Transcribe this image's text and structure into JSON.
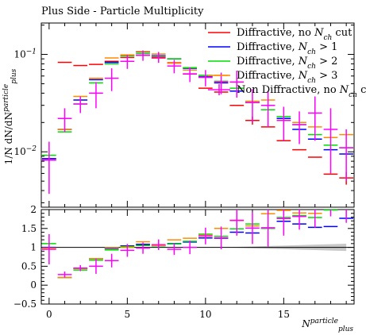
{
  "chart_data": {
    "type": "scatter",
    "title": "Plus Side - Particle Multiplicity",
    "xlabel": "N_plus^particle",
    "ylabel": "1/N dN/dN_plus^particle",
    "ratio_ylabel": "",
    "xlim": [
      -0.5,
      19.5
    ],
    "ylim_log": [
      0.0027,
      0.21
    ],
    "ratio_ylim": [
      -0.5,
      2.0
    ],
    "main_yticks": [
      {
        "value": 0.01,
        "base": "10",
        "exp": "−2"
      },
      {
        "value": 0.1,
        "base": "10",
        "exp": "−1"
      }
    ],
    "xticks": [
      0,
      5,
      10,
      15
    ],
    "ratio_yticks": [
      -0.5,
      0,
      0.5,
      1,
      1.5,
      2
    ],
    "series": [
      {
        "name": "Diffractive, no N_ch cut",
        "color": "#ff0000",
        "x": [
          0,
          1,
          2,
          3,
          4,
          5,
          6,
          7,
          8,
          9,
          10,
          11,
          12,
          13,
          14,
          15,
          16,
          17,
          18,
          19
        ],
        "y": [
          0.0085,
          0.083,
          0.077,
          0.079,
          0.085,
          0.093,
          0.098,
          0.092,
          0.082,
          0.063,
          0.045,
          0.041,
          0.03,
          0.021,
          0.018,
          0.013,
          0.0105,
          0.0088,
          0.0059,
          0.0054
        ],
        "yerr": [
          0,
          0,
          0,
          0,
          0,
          0,
          0,
          0,
          0,
          0,
          0,
          0,
          0,
          0.002,
          0,
          0,
          0,
          0,
          0,
          0.0008
        ],
        "ratio": [
          1,
          1,
          1,
          1,
          1,
          1,
          1,
          1,
          1,
          1,
          1,
          1,
          1,
          1,
          1,
          1,
          1,
          1,
          1,
          1
        ],
        "ratio_err": [
          0,
          0,
          0,
          0,
          0,
          0,
          0,
          0,
          0,
          0,
          0,
          0,
          0,
          0,
          0,
          0,
          0,
          0,
          0,
          0
        ]
      },
      {
        "name": "Diffractive, N_ch > 1",
        "color": "#0000ff",
        "x": [
          0,
          1,
          2,
          3,
          4,
          5,
          6,
          7,
          8,
          9,
          10,
          11,
          12,
          13,
          14,
          15,
          16,
          17,
          18,
          19
        ],
        "y": [
          0.0085,
          0.017,
          0.034,
          0.055,
          0.083,
          0.097,
          0.106,
          0.097,
          0.09,
          0.072,
          0.059,
          0.051,
          0.042,
          0.032,
          0.027,
          0.022,
          0.017,
          0.0135,
          0.0105,
          0.0095
        ],
        "yerr": [
          0,
          0,
          0,
          0,
          0,
          0,
          0,
          0,
          0,
          0,
          0,
          0,
          0,
          0,
          0,
          0,
          0,
          0,
          0,
          0
        ],
        "ratio": [
          1.0,
          0.2,
          0.44,
          0.7,
          0.97,
          1.04,
          1.08,
          1.05,
          1.1,
          1.14,
          1.25,
          1.24,
          1.4,
          1.38,
          1.5,
          1.69,
          1.62,
          1.53,
          1.55,
          1.77
        ],
        "ratio_err": [
          0,
          0,
          0,
          0,
          0,
          0,
          0,
          0,
          0,
          0,
          0,
          0,
          0,
          0,
          0,
          0,
          0,
          0,
          0,
          0
        ]
      },
      {
        "name": "Diffractive, N_ch > 2",
        "color": "#00dd00",
        "x": [
          0,
          1,
          2,
          3,
          4,
          5,
          6,
          7,
          8,
          9,
          10,
          11,
          12,
          13,
          14,
          15,
          16,
          17,
          18,
          19
        ],
        "y": [
          0.0092,
          0.016,
          0.031,
          0.051,
          0.08,
          0.097,
          0.102,
          0.096,
          0.09,
          0.073,
          0.061,
          0.053,
          0.045,
          0.033,
          0.027,
          0.023,
          0.019,
          0.015,
          0.0117,
          0.011
        ],
        "yerr": [
          0,
          0,
          0,
          0,
          0,
          0,
          0,
          0,
          0,
          0,
          0,
          0,
          0,
          0,
          0,
          0,
          0,
          0,
          0,
          0
        ],
        "ratio": [
          1.1,
          0.2,
          0.4,
          0.66,
          0.93,
          1.02,
          1.05,
          1.04,
          1.09,
          1.16,
          1.35,
          1.29,
          1.49,
          1.62,
          1.5,
          1.79,
          1.84,
          1.79,
          1.99,
          2.03
        ],
        "ratio_err": [
          0,
          0,
          0,
          0,
          0,
          0,
          0,
          0,
          0,
          0,
          0,
          0,
          0,
          0,
          0,
          0,
          0,
          0,
          0,
          0
        ]
      },
      {
        "name": "Diffractive, N_ch > 3",
        "color": "#ff8c00",
        "x": [
          0,
          1,
          2,
          3,
          4,
          5,
          6,
          7,
          8,
          9,
          10,
          11,
          12,
          13,
          14,
          15,
          16,
          17,
          18,
          19
        ],
        "y": [
          0.0082,
          0.017,
          0.037,
          0.057,
          0.092,
          0.099,
          0.107,
          0.101,
          0.081,
          0.069,
          0.058,
          0.061,
          0.052,
          0.033,
          0.034,
          0.021,
          0.02,
          0.018,
          0.014,
          0.015
        ],
        "yerr": [
          0,
          0,
          0,
          0,
          0,
          0,
          0,
          0,
          0,
          0,
          0,
          0,
          0,
          0,
          0,
          0,
          0,
          0,
          0,
          0
        ],
        "ratio": [
          0.98,
          0.2,
          0.44,
          0.7,
          0.99,
          1.0,
          1.15,
          1.05,
          1.2,
          1.24,
          1.32,
          1.5,
          1.72,
          1.57,
          1.89,
          1.98,
          1.91,
          1.9,
          2.3,
          2.8
        ],
        "ratio_err": [
          0,
          0,
          0,
          0,
          0,
          0,
          0,
          0,
          0,
          0,
          0,
          0,
          0,
          0,
          0,
          0,
          0,
          0,
          0,
          0
        ]
      },
      {
        "name": "Non Diffractive, no N_ch cut",
        "color": "#ff00ff",
        "x": [
          0,
          1,
          2,
          3,
          4,
          5,
          6,
          7,
          8,
          9,
          10,
          11,
          12,
          13,
          14,
          15,
          16,
          17,
          18,
          19
        ],
        "y": [
          0.0082,
          0.022,
          0.031,
          0.04,
          0.057,
          0.085,
          0.098,
          0.094,
          0.076,
          0.063,
          0.058,
          0.052,
          0.052,
          0.032,
          0.03,
          0.021,
          0.019,
          0.025,
          0.017,
          0.011
        ],
        "yerr": [
          0.0045,
          0.006,
          0.006,
          0.012,
          0.015,
          0.014,
          0.012,
          0.012,
          0.012,
          0.011,
          0.011,
          0.013,
          0.016,
          0.012,
          0.012,
          0.008,
          0.007,
          0.012,
          0.011,
          0.006
        ],
        "ratio": [
          0.95,
          0.28,
          0.45,
          0.5,
          0.65,
          0.92,
          0.98,
          1.07,
          0.95,
          1.0,
          1.3,
          1.25,
          1.71,
          1.51,
          1.52,
          1.76,
          1.82,
          2.12,
          2.72,
          2.55
        ],
        "ratio_err": [
          0.4,
          0.08,
          0.08,
          0.2,
          0.18,
          0.17,
          0.15,
          0.14,
          0.15,
          0.18,
          0.22,
          0.3,
          0.4,
          0.42,
          0.5,
          0.45,
          0.35,
          0.6,
          0.9,
          0.9
        ]
      }
    ],
    "legend_position": "top-right"
  }
}
